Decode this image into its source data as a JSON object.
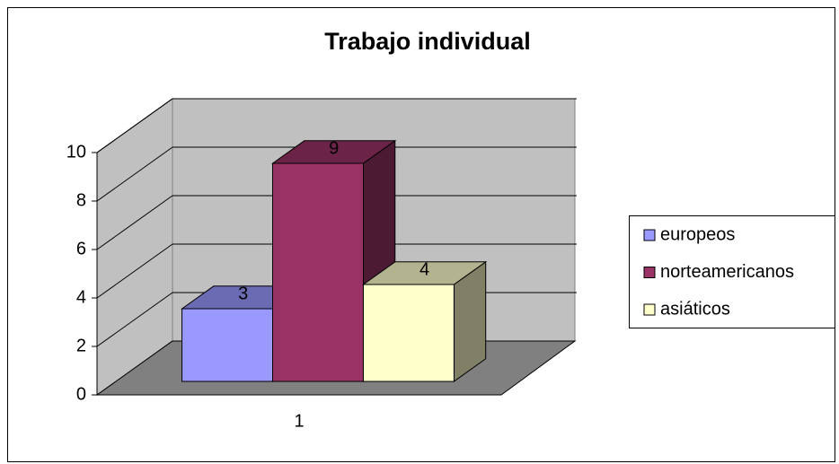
{
  "chart_data": {
    "type": "bar3d",
    "title": "Trabajo individual",
    "categories": [
      "1"
    ],
    "series": [
      {
        "name": "europeos",
        "color": "#9999ff",
        "values": [
          3
        ]
      },
      {
        "name": "norteamericanos",
        "color": "#993366",
        "values": [
          9
        ]
      },
      {
        "name": "asiáticos",
        "color": "#ffffcc",
        "values": [
          4
        ]
      }
    ],
    "ylim": [
      0,
      10
    ],
    "yticks": [
      0,
      2,
      4,
      6,
      8,
      10
    ],
    "grid": true,
    "legend": "right"
  }
}
